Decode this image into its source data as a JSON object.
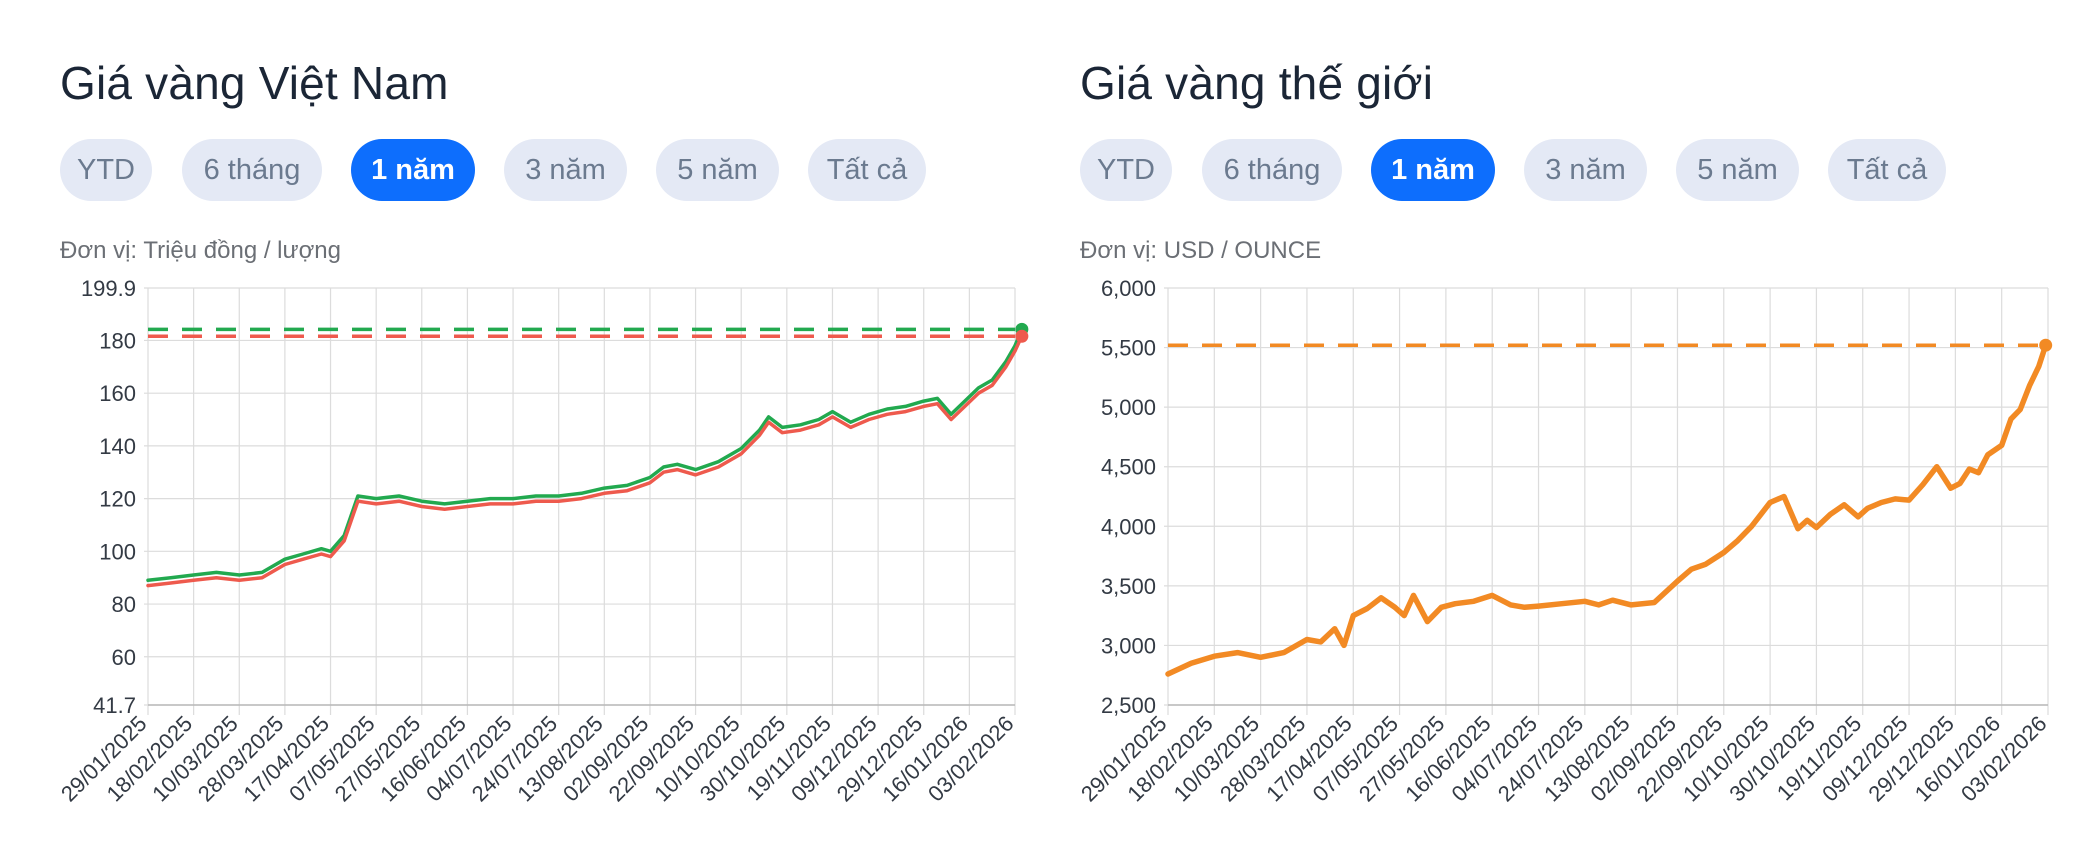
{
  "panels": [
    {
      "title": "Giá vàng Việt Nam",
      "tabs": [
        {
          "label": "YTD",
          "active": false
        },
        {
          "label": "6 tháng",
          "active": false
        },
        {
          "label": "1 năm",
          "active": true
        },
        {
          "label": "3 năm",
          "active": false
        },
        {
          "label": "5 năm",
          "active": false
        },
        {
          "label": "Tất cả",
          "active": false
        }
      ],
      "unit": "Đơn vị: Triệu đồng / lượng"
    },
    {
      "title": "Giá vàng thế giới",
      "tabs": [
        {
          "label": "YTD",
          "active": false
        },
        {
          "label": "6 tháng",
          "active": false
        },
        {
          "label": "1 năm",
          "active": true
        },
        {
          "label": "3 năm",
          "active": false
        },
        {
          "label": "5 năm",
          "active": false
        },
        {
          "label": "Tất cả",
          "active": false
        }
      ],
      "unit": "Đơn vị: USD / OUNCE"
    }
  ],
  "colors": {
    "buy": "#22a94f",
    "sell": "#ee5a4d",
    "world": "#f28a24",
    "active_tab": "#0d6efd",
    "tab": "#e4e9f5",
    "grid": "#dcdcdc"
  },
  "chart_data": [
    {
      "type": "line",
      "title": "",
      "xlabel": "",
      "ylabel": "",
      "ylim": [
        41.7,
        199.9
      ],
      "y_ticks": [
        41.7,
        60,
        80,
        100,
        120,
        140,
        160,
        180,
        199.9
      ],
      "y_tick_labels": [
        "41.7",
        "60",
        "80",
        "100",
        "120",
        "140",
        "160",
        "180",
        "199.9"
      ],
      "x_tick_labels": [
        "29/01/2025",
        "18/02/2025",
        "10/03/2025",
        "28/03/2025",
        "17/04/2025",
        "07/05/2025",
        "27/05/2025",
        "16/06/2025",
        "04/07/2025",
        "24/07/2025",
        "13/08/2025",
        "02/09/2025",
        "22/09/2025",
        "10/10/2025",
        "30/10/2025",
        "19/11/2025",
        "09/12/2025",
        "29/12/2025",
        "16/01/2026",
        "03/02/2026"
      ],
      "grid": true,
      "series": [
        {
          "color": "#22a94f",
          "last_value": 184.2,
          "x": [
            0,
            0.5,
            1,
            1.5,
            2,
            2.5,
            3,
            3.4,
            3.8,
            4.0,
            4.3,
            4.6,
            5.0,
            5.5,
            6.0,
            6.5,
            7.0,
            7.5,
            8.0,
            8.5,
            9.0,
            9.5,
            10.0,
            10.5,
            11.0,
            11.3,
            11.6,
            12.0,
            12.5,
            13.0,
            13.4,
            13.6,
            13.9,
            14.3,
            14.7,
            15.0,
            15.4,
            15.8,
            16.2,
            16.6,
            17.0,
            17.3,
            17.6,
            17.9,
            18.2,
            18.5,
            18.8,
            19.0,
            19.15
          ],
          "values": [
            89,
            90,
            91,
            92,
            91,
            92,
            97,
            99,
            101,
            100,
            106,
            121,
            120,
            121,
            119,
            118,
            119,
            120,
            120,
            121,
            121,
            122,
            124,
            125,
            128,
            132,
            133,
            131,
            134,
            139,
            146,
            151,
            147,
            148,
            150,
            153,
            149,
            152,
            154,
            155,
            157,
            158,
            152,
            157,
            162,
            165,
            172,
            178,
            184.2
          ]
        },
        {
          "color": "#ee5a4d",
          "last_value": 181.6,
          "x": [
            0,
            0.5,
            1,
            1.5,
            2,
            2.5,
            3,
            3.4,
            3.8,
            4.0,
            4.3,
            4.6,
            5.0,
            5.5,
            6.0,
            6.5,
            7.0,
            7.5,
            8.0,
            8.5,
            9.0,
            9.5,
            10.0,
            10.5,
            11.0,
            11.3,
            11.6,
            12.0,
            12.5,
            13.0,
            13.4,
            13.6,
            13.9,
            14.3,
            14.7,
            15.0,
            15.4,
            15.8,
            16.2,
            16.6,
            17.0,
            17.3,
            17.6,
            17.9,
            18.2,
            18.5,
            18.8,
            19.0,
            19.15
          ],
          "values": [
            87,
            88,
            89,
            90,
            89,
            90,
            95,
            97,
            99,
            98,
            104,
            119,
            118,
            119,
            117,
            116,
            117,
            118,
            118,
            119,
            119,
            120,
            122,
            123,
            126,
            130,
            131,
            129,
            132,
            137,
            144,
            149,
            145,
            146,
            148,
            151,
            147,
            150,
            152,
            153,
            155,
            156,
            150,
            155,
            160,
            163,
            170,
            176,
            181.6
          ]
        }
      ]
    },
    {
      "type": "line",
      "title": "",
      "xlabel": "",
      "ylabel": "",
      "ylim": [
        2500,
        6000
      ],
      "y_ticks": [
        2500,
        3000,
        3500,
        4000,
        4500,
        5000,
        5500,
        6000
      ],
      "y_tick_labels": [
        "2,500",
        "3,000",
        "3,500",
        "4,000",
        "4,500",
        "5,000",
        "5,500",
        "6,000"
      ],
      "x_tick_labels": [
        "29/01/2025",
        "18/02/2025",
        "10/03/2025",
        "28/03/2025",
        "17/04/2025",
        "07/05/2025",
        "27/05/2025",
        "16/06/2025",
        "04/07/2025",
        "24/07/2025",
        "13/08/2025",
        "02/09/2025",
        "22/09/2025",
        "10/10/2025",
        "30/10/2025",
        "19/11/2025",
        "09/12/2025",
        "29/12/2025",
        "16/01/2026",
        "03/02/2026"
      ],
      "grid": true,
      "series": [
        {
          "color": "#f28a24",
          "last_value": 5520,
          "x": [
            0,
            0.5,
            1,
            1.5,
            2,
            2.5,
            3,
            3.3,
            3.6,
            3.8,
            4.0,
            4.3,
            4.6,
            4.9,
            5.1,
            5.3,
            5.6,
            5.9,
            6.2,
            6.6,
            7.0,
            7.4,
            7.7,
            8.0,
            8.5,
            9.0,
            9.3,
            9.6,
            10.0,
            10.5,
            11.0,
            11.3,
            11.6,
            12.0,
            12.3,
            12.6,
            13.0,
            13.3,
            13.6,
            13.8,
            14.0,
            14.3,
            14.6,
            14.9,
            15.1,
            15.4,
            15.7,
            16.0,
            16.3,
            16.6,
            16.9,
            17.1,
            17.3,
            17.5,
            17.7,
            18.0,
            18.2,
            18.4,
            18.6,
            18.8,
            18.95
          ],
          "values": [
            2760,
            2850,
            2910,
            2940,
            2900,
            2940,
            3050,
            3030,
            3140,
            3000,
            3250,
            3310,
            3400,
            3320,
            3250,
            3420,
            3200,
            3320,
            3350,
            3370,
            3420,
            3340,
            3320,
            3330,
            3350,
            3370,
            3340,
            3380,
            3340,
            3360,
            3540,
            3640,
            3680,
            3780,
            3880,
            4000,
            4200,
            4250,
            3980,
            4050,
            3990,
            4100,
            4180,
            4080,
            4150,
            4200,
            4230,
            4220,
            4350,
            4500,
            4320,
            4360,
            4480,
            4450,
            4600,
            4680,
            4900,
            4980,
            5180,
            5340,
            5520
          ]
        }
      ]
    }
  ]
}
